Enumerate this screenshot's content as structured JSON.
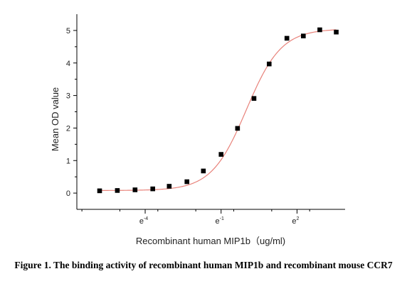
{
  "chart_data": {
    "type": "scatter",
    "xlabel": "Recombinant human  MIP1b（ug/ml)",
    "ylabel": "Mean OD value",
    "xscale": "log",
    "xticks": [
      {
        "base": "e",
        "exp": "-4",
        "value_ln": -4
      },
      {
        "base": "e",
        "exp": "-1",
        "value_ln": -1
      },
      {
        "base": "e",
        "exp": "2",
        "value_ln": 2
      }
    ],
    "yticks": [
      "0",
      "1",
      "2",
      "3",
      "4",
      "5"
    ],
    "ylim": [
      -0.5,
      5.5
    ],
    "xlim_ln": [
      -6.7,
      3.1
    ],
    "grid": false,
    "legend": "none",
    "colors": {
      "markers": "#000000",
      "fit_line": "#e8827a",
      "axes": "#000000"
    },
    "points": [
      {
        "x_ln": -5.8,
        "y": 0.07
      },
      {
        "x_ln": -5.1,
        "y": 0.08
      },
      {
        "x_ln": -4.4,
        "y": 0.1
      },
      {
        "x_ln": -3.7,
        "y": 0.13
      },
      {
        "x_ln": -3.05,
        "y": 0.21
      },
      {
        "x_ln": -2.35,
        "y": 0.35
      },
      {
        "x_ln": -1.7,
        "y": 0.68
      },
      {
        "x_ln": -1.0,
        "y": 1.19
      },
      {
        "x_ln": -0.35,
        "y": 1.99
      },
      {
        "x_ln": 0.3,
        "y": 2.91
      },
      {
        "x_ln": 0.9,
        "y": 3.97
      },
      {
        "x_ln": 1.6,
        "y": 4.76
      },
      {
        "x_ln": 2.25,
        "y": 4.83
      },
      {
        "x_ln": 2.9,
        "y": 5.02
      },
      {
        "x_ln": 3.55,
        "y": 4.95
      }
    ],
    "fit": {
      "bottom": 0.08,
      "top": 5.05,
      "x50_ln": 0.0,
      "slope": 1.45
    }
  },
  "caption": "Figure 1. The binding activity of recombinant human MIP1b and recombinant mouse CCR7"
}
